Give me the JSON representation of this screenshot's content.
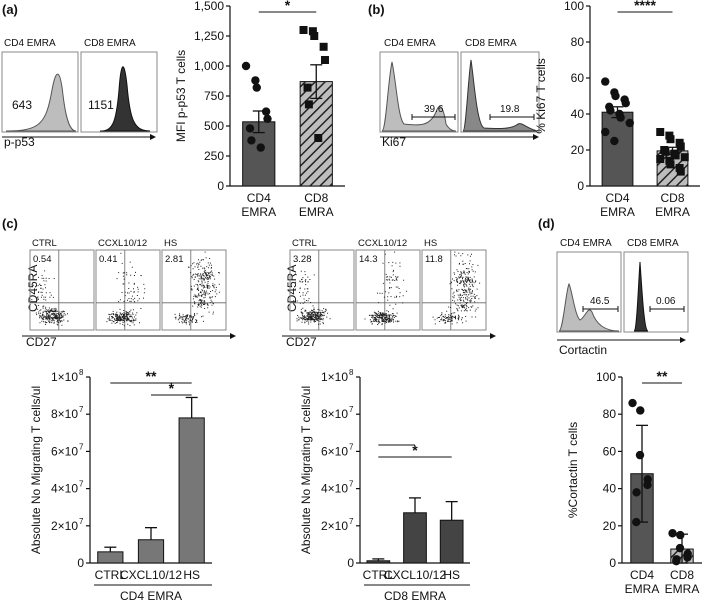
{
  "panel_labels": {
    "a": "(a)",
    "b": "(b)",
    "c": "(c)",
    "d": "(d)"
  },
  "histograms": {
    "a": {
      "left_title": "CD4 EMRA",
      "right_title": "CD8 EMRA",
      "left_value": "643",
      "right_value": "1151",
      "axis_label": "p-p53"
    },
    "b": {
      "left_title": "CD4 EMRA",
      "right_title": "CD8 EMRA",
      "left_value": "39.6",
      "right_value": "19.8",
      "axis_label": "Ki67"
    },
    "d": {
      "left_title": "CD4 EMRA",
      "right_title": "CD8 EMRA",
      "left_value": "46.5",
      "right_value": "0.06",
      "axis_label": "Cortactin"
    }
  },
  "dotplots": {
    "cd4": {
      "titles": [
        "CTRL",
        "CCXL10/12",
        "HS"
      ],
      "values": [
        "0.54",
        "0.41",
        "2.81"
      ],
      "ylabel": "CD45RA",
      "xlabel": "CD27"
    },
    "cd8": {
      "titles": [
        "CTRL",
        "CCXL10/12",
        "HS"
      ],
      "values": [
        "3.28",
        "14.3",
        "11.8"
      ],
      "ylabel": "CD45RA",
      "xlabel": "CD27"
    }
  },
  "chart_data": [
    {
      "id": "a-bar",
      "type": "bar",
      "categories": [
        "CD4\nEMRA",
        "CD8\nEMRA"
      ],
      "values": [
        535,
        870
      ],
      "errors": [
        90,
        140
      ],
      "points": [
        [
          1000,
          880,
          820,
          620,
          560,
          480,
          380,
          320
        ],
        [
          1300,
          1290,
          1250,
          1160,
          1050,
          820,
          680,
          400
        ]
      ],
      "ylabel": "MFI p-p53 T cells",
      "ylim": [
        0,
        1500
      ],
      "yticks": [
        0,
        250,
        500,
        750,
        1000,
        1250,
        1500
      ],
      "ytick_labels": [
        "0",
        "250",
        "500",
        "750",
        "1,000",
        "1,250",
        "1,500"
      ],
      "significance": [
        {
          "from": 0,
          "to": 1,
          "label": "*"
        }
      ]
    },
    {
      "id": "b-bar",
      "type": "bar",
      "categories": [
        "CD4\nEMRA",
        "CD8\nEMRA"
      ],
      "values": [
        41,
        19.5
      ],
      "errors": [
        3,
        2
      ],
      "points": [
        [
          58,
          52,
          50,
          48,
          46,
          44,
          42,
          40,
          38,
          35,
          30,
          25
        ],
        [
          30,
          28,
          26,
          24,
          22,
          20,
          19,
          18,
          17,
          16,
          15,
          14,
          12,
          10,
          8
        ]
      ],
      "ylabel": "% Ki67 T cells",
      "ylim": [
        0,
        100
      ],
      "yticks": [
        0,
        20,
        40,
        60,
        80,
        100
      ],
      "ytick_labels": [
        "0",
        "20",
        "40",
        "60",
        "80",
        "100"
      ],
      "significance": [
        {
          "from": 0,
          "to": 1,
          "label": "****"
        }
      ]
    },
    {
      "id": "c-cd4-bar",
      "type": "bar",
      "categories": [
        "CTRL",
        "CXCL10/12",
        "HS"
      ],
      "values": [
        6000000,
        12500000,
        78000000
      ],
      "errors": [
        2500000,
        6500000,
        11000000
      ],
      "ylabel": "Absolute No Migrating T cells/ul",
      "ylim": [
        0,
        100000000
      ],
      "yticks": [
        0,
        20000000,
        40000000,
        60000000,
        80000000,
        100000000
      ],
      "ytick_labels": [
        "0",
        "2×10",
        "4×10",
        "6×10",
        "8×10",
        "1×10"
      ],
      "ytick_exp": [
        "",
        "7",
        "7",
        "7",
        "7",
        "8"
      ],
      "group_label": "CD4 EMRA",
      "significance": [
        {
          "from": 0,
          "to": 2,
          "label": "**"
        },
        {
          "from": 1,
          "to": 2,
          "label": "*"
        }
      ]
    },
    {
      "id": "c-cd8-bar",
      "type": "bar",
      "categories": [
        "CTRL",
        "CXCL10/12",
        "HS"
      ],
      "values": [
        1200000,
        27000000,
        23000000
      ],
      "errors": [
        1000000,
        8000000,
        10000000
      ],
      "ylabel": "Absolute No Migrating T cells/ul",
      "ylim": [
        0,
        100000000
      ],
      "yticks": [
        0,
        20000000,
        40000000,
        60000000,
        80000000,
        100000000
      ],
      "ytick_labels": [
        "0",
        "2×10",
        "4×10",
        "6×10",
        "8×10",
        "1×10"
      ],
      "ytick_exp": [
        "",
        "7",
        "7",
        "7",
        "7",
        "8"
      ],
      "group_label": "CD8 EMRA",
      "significance": [
        {
          "from": 0,
          "to": 1,
          "label": ""
        },
        {
          "from": 0,
          "to": 2,
          "label": "*"
        }
      ]
    },
    {
      "id": "d-bar",
      "type": "bar",
      "categories": [
        "CD4\nEMRA",
        "CD8\nEMRA"
      ],
      "values": [
        48,
        7.5
      ],
      "errors": [
        26,
        8
      ],
      "points": [
        [
          86,
          82,
          58,
          45,
          42,
          38,
          22
        ],
        [
          16,
          15,
          8,
          5,
          3,
          2,
          1
        ]
      ],
      "ylabel": "%Cortactin T cells",
      "ylim": [
        0,
        100
      ],
      "yticks": [
        0,
        20,
        40,
        60,
        80,
        100
      ],
      "ytick_labels": [
        "0",
        "20",
        "40",
        "60",
        "80",
        "100"
      ],
      "significance": [
        {
          "from": 0,
          "to": 1,
          "label": "**"
        }
      ]
    }
  ]
}
